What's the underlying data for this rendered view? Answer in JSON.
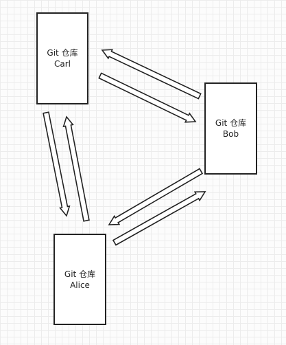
{
  "diagram": {
    "nodes": [
      {
        "id": "carl",
        "line1": "Git 仓库",
        "line2": "Carl"
      },
      {
        "id": "bob",
        "line1": "Git 仓库",
        "line2": "Bob"
      },
      {
        "id": "alice",
        "line1": "Git 仓库",
        "line2": "Alice"
      }
    ],
    "edges": [
      {
        "from": "bob",
        "to": "carl"
      },
      {
        "from": "carl",
        "to": "bob"
      },
      {
        "from": "carl",
        "to": "alice"
      },
      {
        "from": "alice",
        "to": "carl"
      },
      {
        "from": "bob",
        "to": "alice"
      },
      {
        "from": "alice",
        "to": "bob"
      }
    ],
    "colors": {
      "stroke": "#222222",
      "fill": "#ffffff"
    }
  }
}
